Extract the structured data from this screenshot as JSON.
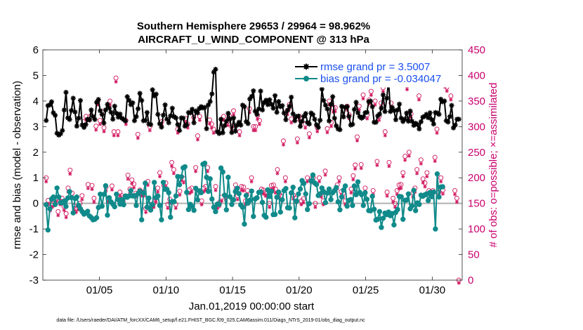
{
  "chart_data": {
    "type": "line",
    "title": "Southern Hemisphere 29653 / 29964 = 98.962%",
    "subtitle": "AIRCRAFT_U_WIND_COMPONENT @ 313 hPa",
    "xlabel": "Jan.01,2019 00:00:00 start",
    "ylabel_left": "rmse and bias (model - observation)",
    "ylabel_right": "# of obs: o=possible; ×=assimilated",
    "footnote": "data file: /Users/raeder/DAI/ATM_forcXX/CAM6_setup/f.e21.FHIST_BGC.f09_025.CAM6assim.011/Diags_NTrS_2019-01/obs_diag_output.nc",
    "x_ticks": [
      5,
      10,
      15,
      20,
      25,
      30
    ],
    "x_tick_labels": [
      "01/05",
      "01/10",
      "01/15",
      "01/20",
      "01/25",
      "01/30"
    ],
    "xlim": [
      0.75,
      32.25
    ],
    "ylim_left": [
      -3,
      6
    ],
    "y_ticks_left": [
      "-3",
      "-2",
      "-1",
      "0",
      "1",
      "2",
      "3",
      "4",
      "5",
      "6"
    ],
    "ylim_right": [
      0,
      450
    ],
    "y_ticks_right": [
      "0",
      "50",
      "100",
      "150",
      "200",
      "250",
      "300",
      "350",
      "400",
      "450"
    ],
    "colors": {
      "rmse": "#000000",
      "bias": "#108a8a",
      "obs": "#d0105a",
      "zero": "#b0b0b0",
      "legend_text": "#1a4ff0",
      "right_axis": "#c8006e"
    },
    "legend": [
      {
        "name": "rmse",
        "label": "rmse grand pr = 3.5007"
      },
      {
        "name": "bias",
        "label": "bias grand pr = -0.034047"
      }
    ],
    "series": [
      {
        "name": "rmse",
        "values": [
          3.24,
          3.82,
          3.85,
          3.97,
          3.54,
          3.44,
          2.74,
          2.67,
          2.72,
          2.85,
          3.65,
          4.34,
          3.34,
          3.28,
          3.63,
          4.11,
          3.57,
          3.02,
          3.33,
          4.02,
          3.06,
          2.97,
          3.08,
          3.29,
          3.26,
          3.65,
          3.39,
          3.28,
          3.95,
          4.06,
          3.62,
          3.48,
          3.14,
          3.65,
          3.87,
          3.72,
          3.56,
          3.29,
          3.8,
          3.52,
          3.37,
          3.49,
          3.33,
          3.28,
          3.22,
          4.17,
          4.03,
          3.86,
          3.93,
          3.23,
          3.39,
          3.7,
          4.3,
          4.02,
          3.23,
          3.24,
          3.55,
          3.1,
          3.08,
          4.44,
          4.2,
          4.27,
          3.48,
          3.11,
          2.98,
          3.45,
          3.85,
          3.29,
          3.15,
          3.42,
          3.72,
          3.39,
          3.34,
          3.08,
          2.85,
          3.34,
          3.33,
          3.02,
          3.07,
          3.55,
          3.54,
          3.68,
          3.15,
          3.61,
          3.54,
          3.71,
          3.78,
          3.73,
          3.75,
          2.92,
          3.85,
          3.98,
          4.28,
          5.13,
          5.24,
          2.8,
          2.73,
          3.29,
          2.76,
          3.04,
          3.21,
          3.52,
          3.3,
          2.77,
          3.34,
          2.82,
          3.06,
          3.17,
          3.06,
          3.84,
          3.78,
          3.19,
          3.12,
          4.08,
          4.18,
          4.4,
          3.6,
          3.48,
          3.69,
          4.39,
          3.65,
          3.94,
          4.03,
          3.86,
          4.05,
          3.87,
          3.72,
          4.21,
          3.56,
          3.98,
          3.78,
          3.82,
          3.53,
          3.27,
          3.64,
          3.79,
          4.15,
          3.5,
          3.23,
          3.4,
          3.41,
          3.01,
          3.21,
          3.4,
          3.51,
          3.16,
          3.1,
          3.53,
          3.47,
          3.29,
          3.07,
          2.97,
          3.25,
          4.47,
          4.02,
          3.84,
          3.69,
          3.22,
          3.87,
          4.17,
          3.33,
          3.03,
          2.91,
          2.88,
          3.79,
          3.38,
          3.76,
          3.78,
          3.4,
          3.06,
          3.09,
          3.67,
          3.95,
          3.54,
          3.39,
          3.33,
          3.38,
          3.54,
          3.56,
          3.98,
          3.99,
          3.78,
          3.17,
          3.17,
          3.42,
          3.49,
          3.72,
          4.24,
          3.59,
          4.11,
          4.8,
          3.59,
          3.75,
          3.63,
          3.27,
          3.65,
          3.88,
          3.33,
          3.2,
          3.29,
          3.53,
          3.21,
          3.61,
          3.21,
          3.05,
          3.13,
          3.08,
          2.91,
          3.19,
          3.37,
          3.4,
          3.48,
          3.35,
          3.54,
          3.27,
          3.1,
          3.55,
          3.53,
          3.48,
          4.07,
          3.97,
          4.0,
          3.23,
          3.18,
          3.39,
          3.83,
          2.95,
          3.06,
          3.29,
          3.29
        ]
      },
      {
        "name": "bias",
        "values": [
          -0.05,
          -1.04,
          -0.21,
          0.17,
          0.25,
          -0.04,
          0.6,
          0.25,
          0.03,
          0.02,
          0.09,
          -0.12,
          0.21,
          0.46,
          0.23,
          -0.37,
          0.19,
          0.25,
          -0.08,
          -0.21,
          -0.32,
          -0.42,
          -0.38,
          -0.31,
          -0.49,
          -0.55,
          -0.64,
          -0.62,
          -0.56,
          -0.16,
          0.36,
          -0.11,
          0.35,
          0.69,
          -0.46,
          0.22,
          0.06,
          -0.03,
          -0.13,
          0.36,
          0.14,
          -0.03,
          0.15,
          -0.05,
          0.29,
          0.24,
          0.29,
          0.5,
          0.29,
          0.3,
          -0.08,
          0.38,
          0.48,
          -0.64,
          0.4,
          0.79,
          -0.15,
          0.21,
          -0.26,
          -0.05,
          0.82,
          0.23,
          0.29,
          -0.08,
          -0.64,
          0.82,
          0.55,
          0.55,
          0.42,
          -0.54,
          0.07,
          0.07,
          0.29,
          1.05,
          0.73,
          1.04,
          1.39,
          1.43,
          0.43,
          -0.24,
          -0.04,
          -0.12,
          -0.27,
          0.59,
          0.14,
          0.49,
          0.42,
          1.53,
          1.57,
          1.02,
          0.47,
          0.96,
          0.17,
          -0.15,
          -0.32,
          -0.03,
          -0.04,
          1.38,
          1.23,
          0.32,
          -0.25,
          1.02,
          0.26,
          -0.04,
          0.14,
          0.46,
          0.59,
          0.38,
          -0.06,
          -0.15,
          -0.81,
          0.31,
          0.01,
          0.12,
          0.48,
          -0.51,
          0.17,
          0.22,
          0.43,
          0.45,
          0.04,
          -0.47,
          -0.54,
          0.53,
          0.27,
          0.47,
          -0.44,
          -0.43,
          0.24,
          0.44,
          -0.34,
          0.14,
          0.5,
          0.58,
          -0.17,
          -0.18,
          0.41,
          0.63,
          -0.56,
          0.09,
          0.37,
          0.56,
          0.89,
          0.78,
          0.37,
          -0.24,
          -0.01,
          0.88,
          1.11,
          0.8,
          0.74,
          0.31,
          0.37,
          0.6,
          0.46,
          0.03,
          0.4,
          0.56,
          0.15,
          0.42,
          0.5,
          0.62,
          0.06,
          -0.25,
          0.25,
          0.52,
          0.68,
          -0.11,
          0.12,
          0.15,
          -0.08,
          0.68,
          0.34,
          0.84,
          0.43,
          0.34,
          -0.08,
          0.42,
          0.16,
          -0.28,
          -0.29,
          0.28,
          -0.23,
          -0.65,
          -0.62,
          -0.32,
          -0.94,
          -0.58,
          -0.38,
          -0.44,
          -0.34,
          -0.48,
          -0.4,
          -0.84,
          -0.35,
          -0.24,
          0.27,
          0.26,
          -0.62,
          0.12,
          0.13,
          0.37,
          -0.21,
          -0.1,
          0.51,
          -0.28,
          0.02,
          -0.04,
          0.32,
          0.28,
          0.33,
          0.37,
          0.11,
          0.43,
          0.26,
          0.44,
          -1.0,
          1.15,
          0.25,
          0.64,
          0.65
        ]
      },
      {
        "name": "obs_possible",
        "values": [
          200,
          156,
          143,
          150,
          153,
          160,
          134,
          155,
          160,
          144,
          130,
          180,
          215,
          170,
          145,
          140,
          145,
          150,
          165,
          310,
          320,
          187,
          320,
          185,
          160,
          301,
          350,
          312,
          330,
          298,
          182,
          160,
          350,
          184,
          290,
          395,
          290,
          172,
          165,
          162,
          312,
          205,
          178,
          196,
          188,
          170,
          285,
          176,
          172,
          172,
          140,
          193,
          300,
          148,
          150,
          160,
          180,
          210,
          310,
          185,
          190,
          148,
          158,
          230,
          216,
          148,
          295,
          174,
          202,
          198,
          316,
          305,
          177,
          180,
          318,
          220,
          282,
          320,
          155,
          180,
          183,
          220,
          313,
          305,
          295,
          183,
          148,
          152,
          162,
          320,
          165,
          310,
          320,
          300,
          331,
          186,
          165,
          290,
          183,
          182,
          155,
          175,
          335,
          200,
          300,
          300,
          322,
          312,
          178,
          176,
          172,
          170,
          150,
          185,
          186,
          178,
          216,
          168,
          164,
          272,
          200,
          331,
          343,
          315,
          166,
          160,
          276,
          320,
          155,
          159,
          305,
          200,
          286,
          198,
          200,
          150,
          298,
          200,
          170,
          155,
          213,
          296,
          350,
          308,
          336,
          337,
          186,
          200,
          173,
          170,
          155,
          340,
          323,
          178,
          204,
          225,
          280,
          340,
          226,
          362,
          180,
          323,
          352,
          369,
          175,
          350,
          232,
          320,
          346,
          376,
          290,
          172,
          230,
          346,
          160,
          150,
          175,
          186,
          187,
          210,
          242,
          380,
          250,
          325,
          170,
          180,
          216,
          360,
          235,
          198,
          190,
          210,
          175,
          172,
          175,
          240,
          295,
          172,
          200,
          176,
          385,
          377,
          404,
          360,
          388,
          175,
          160,
          0
        ]
      },
      {
        "name": "obs_assimilated",
        "values": [
          198,
          154,
          141,
          148,
          151,
          158,
          132,
          153,
          158,
          142,
          128,
          178,
          213,
          168,
          143,
          138,
          143,
          148,
          163,
          308,
          318,
          185,
          318,
          183,
          158,
          299,
          348,
          310,
          328,
          296,
          180,
          158,
          348,
          182,
          288,
          393,
          288,
          170,
          163,
          160,
          310,
          203,
          176,
          194,
          186,
          168,
          283,
          174,
          170,
          170,
          138,
          191,
          298,
          146,
          148,
          158,
          178,
          208,
          308,
          183,
          188,
          146,
          156,
          228,
          214,
          146,
          293,
          172,
          200,
          196,
          314,
          303,
          175,
          178,
          316,
          218,
          280,
          318,
          153,
          178,
          181,
          218,
          311,
          303,
          293,
          181,
          146,
          150,
          160,
          318,
          163,
          308,
          318,
          298,
          329,
          184,
          163,
          288,
          181,
          180,
          153,
          173,
          333,
          198,
          298,
          298,
          320,
          310,
          176,
          174,
          170,
          168,
          148,
          183,
          184,
          176,
          214,
          166,
          162,
          270,
          198,
          329,
          341,
          313,
          164,
          158,
          274,
          318,
          153,
          157,
          303,
          198,
          284,
          196,
          198,
          148,
          296,
          198,
          168,
          153,
          211,
          294,
          348,
          306,
          334,
          335,
          184,
          198,
          171,
          168,
          153,
          338,
          321,
          176,
          202,
          223,
          278,
          338,
          224,
          360,
          178,
          321,
          350,
          367,
          173,
          348,
          230,
          318,
          344,
          374,
          288,
          170,
          228,
          344,
          158,
          148,
          173,
          184,
          185,
          208,
          240,
          378,
          248,
          323,
          168,
          178,
          214,
          358,
          233,
          196,
          188,
          208,
          173,
          170,
          173,
          238,
          293,
          170,
          198,
          174,
          383,
          375,
          402,
          358,
          386,
          173,
          158,
          0
        ]
      }
    ]
  }
}
